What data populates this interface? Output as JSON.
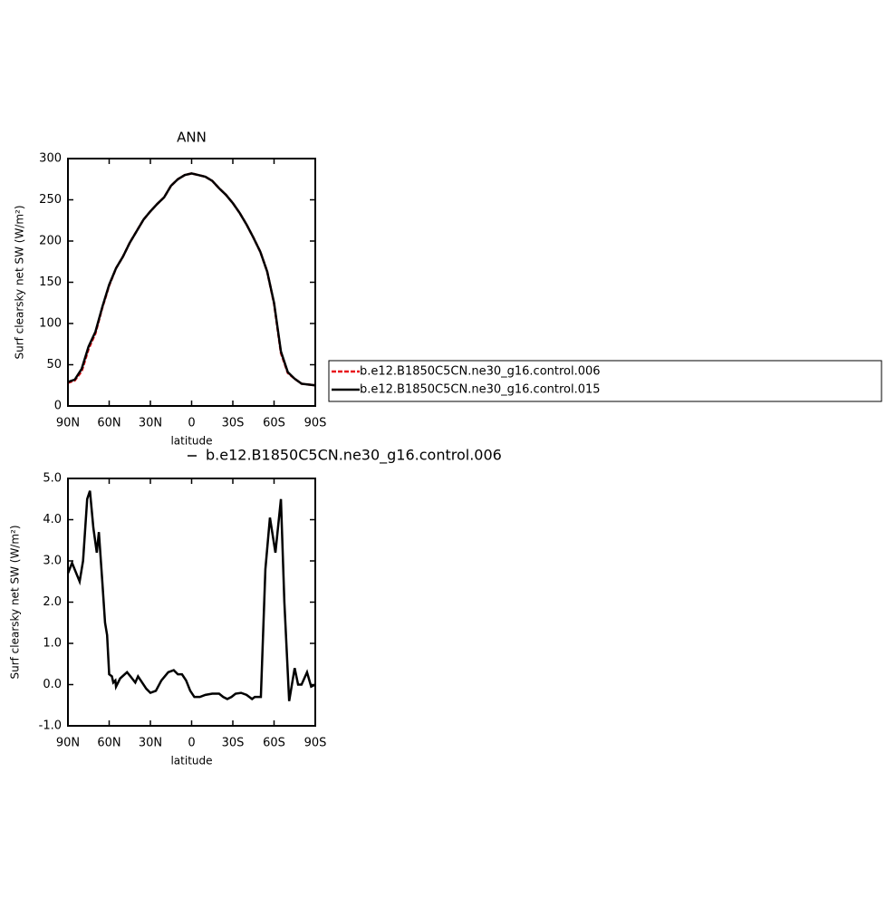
{
  "chart_data": [
    {
      "type": "line",
      "title": "ANN",
      "xlabel": "latitude",
      "ylabel": "Surf clearsky net SW (W/m²)",
      "x": [
        90,
        85,
        80,
        75,
        70,
        65,
        60,
        55,
        50,
        45,
        40,
        35,
        30,
        25,
        20,
        15,
        10,
        5,
        0,
        -5,
        -10,
        -15,
        -20,
        -25,
        -30,
        -35,
        -40,
        -45,
        -50,
        -55,
        -60,
        -65,
        -70,
        -75,
        -80,
        -85,
        -90
      ],
      "series": [
        {
          "name": "b.e12.B1850C5CN.ne30_g16.control.006",
          "color": "#e8141c",
          "style": "dashed",
          "values": [
            28,
            31,
            42,
            69,
            88,
            119,
            146,
            167,
            181,
            198,
            212,
            226,
            236,
            245,
            253,
            267,
            275,
            280,
            282,
            280,
            278,
            273,
            264,
            256,
            246,
            234,
            220,
            204,
            187,
            163,
            124,
            64,
            40,
            33,
            27,
            26,
            25
          ]
        },
        {
          "name": "b.e12.B1850C5CN.ne30_g16.control.015",
          "color": "#000000",
          "style": "solid",
          "values": [
            29,
            32,
            45,
            72,
            90,
            120,
            147,
            167,
            181,
            198,
            212,
            226,
            236,
            245,
            253,
            267,
            275,
            280,
            282,
            280,
            278,
            273,
            264,
            256,
            246,
            234,
            220,
            204,
            187,
            163,
            125,
            66,
            41,
            33,
            27,
            26,
            25
          ]
        }
      ],
      "xlim": [
        90,
        -90
      ],
      "xticks": [
        {
          "value": 90,
          "label": "90N"
        },
        {
          "value": 60,
          "label": "60N"
        },
        {
          "value": 30,
          "label": "30N"
        },
        0,
        {
          "value": -30,
          "label": "30S"
        },
        {
          "value": -60,
          "label": "60S"
        },
        {
          "value": -90,
          "label": "90S"
        }
      ],
      "ylim": [
        0,
        300
      ],
      "yticks": [
        0,
        50,
        100,
        150,
        200,
        250,
        300
      ],
      "legend": "right"
    },
    {
      "type": "line",
      "xlabel": "latitude",
      "ylabel": "Surf clearsky net SW (W/m²)",
      "x": [
        90,
        87,
        81.5,
        79,
        76,
        74,
        71.5,
        69,
        67.5,
        65,
        63,
        61.5,
        60,
        58,
        57,
        55.5,
        55,
        52,
        47,
        44.5,
        41,
        39,
        37,
        33,
        30,
        26,
        22,
        17,
        13,
        10,
        7,
        4,
        1,
        -2,
        -6,
        -10,
        -15,
        -20,
        -23,
        -26,
        -29,
        -32,
        -36,
        -40,
        -44,
        -46,
        -50.4,
        -53.7,
        -57,
        -61,
        -65,
        -67.5,
        -71,
        -75,
        -77.5,
        -80,
        -84,
        -87,
        -90
      ],
      "series": [
        {
          "name": "b.e12.B1850C5CN.ne30_g16.control.006",
          "color": "#000000",
          "style": "solid",
          "values": [
            2.7,
            2.95,
            2.5,
            3.0,
            4.5,
            4.7,
            3.8,
            3.2,
            3.7,
            2.5,
            1.5,
            1.2,
            0.25,
            0.2,
            0.05,
            0.1,
            -0.05,
            0.15,
            0.3,
            0.2,
            0.05,
            0.2,
            0.1,
            -0.1,
            -0.2,
            -0.15,
            0.1,
            0.3,
            0.35,
            0.25,
            0.25,
            0.1,
            -0.15,
            -0.3,
            -0.3,
            -0.25,
            -0.22,
            -0.22,
            -0.3,
            -0.35,
            -0.3,
            -0.22,
            -0.2,
            -0.25,
            -0.35,
            -0.3,
            -0.3,
            2.8,
            4.05,
            3.2,
            4.5,
            2.0,
            -0.4,
            0.4,
            0.0,
            0.0,
            0.3,
            -0.05,
            0.0
          ]
        }
      ],
      "xlim": [
        90,
        -90
      ],
      "xticks": [
        {
          "value": 90,
          "label": "90N"
        },
        {
          "value": 60,
          "label": "60N"
        },
        {
          "value": 30,
          "label": "30N"
        },
        0,
        {
          "value": -30,
          "label": "30S"
        },
        {
          "value": -60,
          "label": "60S"
        },
        {
          "value": -90,
          "label": "90S"
        }
      ],
      "ylim": [
        -1,
        5
      ],
      "yticks": [
        {
          "value": -1,
          "label": "-1.0"
        },
        {
          "value": 0,
          "label": "0.0"
        },
        {
          "value": 1,
          "label": "1.0"
        },
        {
          "value": 2,
          "label": "2.0"
        },
        {
          "value": 3,
          "label": "3.0"
        },
        {
          "value": 4,
          "label": "4.0"
        },
        {
          "value": 5,
          "label": "5.0"
        }
      ],
      "legend": "top"
    }
  ]
}
